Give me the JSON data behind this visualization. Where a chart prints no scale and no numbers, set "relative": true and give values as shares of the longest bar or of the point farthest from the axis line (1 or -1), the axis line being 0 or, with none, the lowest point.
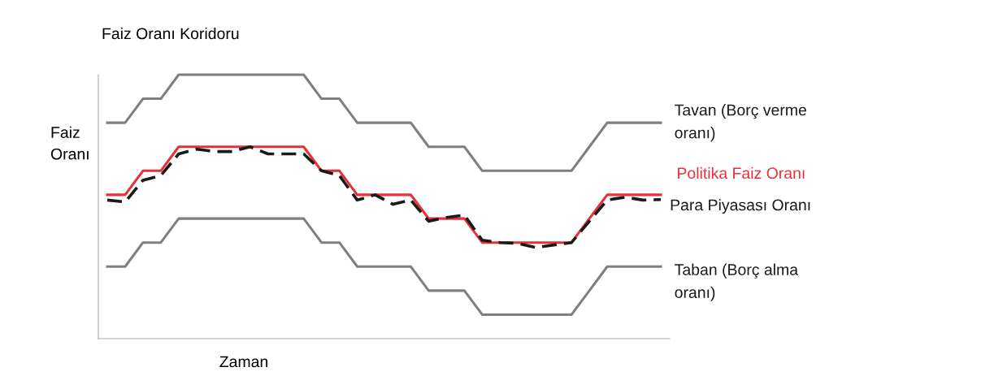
{
  "chart_data": {
    "type": "line",
    "title": "Faiz Oranı Koridoru",
    "ylabel": "Faiz\nOranı",
    "xlabel": "Zaman",
    "relative": true,
    "legend": false,
    "marker": "none",
    "categories": [
      null,
      null,
      null,
      null,
      null,
      null,
      null,
      null,
      null,
      null,
      null,
      null,
      null,
      null,
      null,
      null,
      null,
      null,
      null,
      null,
      null,
      null,
      null,
      null,
      null,
      null,
      null,
      null,
      null,
      null,
      null,
      null
    ],
    "series": [
      {
        "name": "Tavan (Borç verme\noranı)",
        "color": "#7f7f7f",
        "line_style": "solid",
        "values": [
          0.818,
          0.818,
          0.909,
          0.909,
          1,
          1,
          1,
          1,
          1,
          1,
          1,
          1,
          0.909,
          0.909,
          0.818,
          0.818,
          0.818,
          0.818,
          0.727,
          0.727,
          0.727,
          0.636,
          0.636,
          0.636,
          0.636,
          0.636,
          0.636,
          0.727,
          0.818,
          0.818,
          0.818,
          0.818
        ]
      },
      {
        "name": "Politika Faiz Oranı",
        "color": "#e8303a",
        "line_style": "solid",
        "values": [
          0.545,
          0.545,
          0.636,
          0.636,
          0.727,
          0.727,
          0.727,
          0.727,
          0.727,
          0.727,
          0.727,
          0.727,
          0.636,
          0.636,
          0.545,
          0.545,
          0.545,
          0.545,
          0.455,
          0.455,
          0.455,
          0.364,
          0.364,
          0.364,
          0.364,
          0.364,
          0.364,
          0.455,
          0.545,
          0.545,
          0.545,
          0.545
        ]
      },
      {
        "name": "Para Piyasası Oranı",
        "color": "#1a1a1a",
        "line_style": "dashed",
        "values": [
          0.525,
          0.518,
          0.6,
          0.618,
          0.7,
          0.718,
          0.709,
          0.709,
          0.727,
          0.7,
          0.7,
          0.7,
          0.636,
          0.618,
          0.525,
          0.545,
          0.509,
          0.525,
          0.445,
          0.459,
          0.468,
          0.373,
          0.364,
          0.361,
          0.345,
          0.355,
          0.364,
          0.445,
          0.525,
          0.536,
          0.525,
          0.527
        ]
      },
      {
        "name": "Taban (Borç alma\noranı)",
        "color": "#7f7f7f",
        "line_style": "solid",
        "values": [
          0.273,
          0.273,
          0.364,
          0.364,
          0.455,
          0.455,
          0.455,
          0.455,
          0.455,
          0.455,
          0.455,
          0.455,
          0.364,
          0.364,
          0.273,
          0.273,
          0.273,
          0.273,
          0.182,
          0.182,
          0.182,
          0.091,
          0.091,
          0.091,
          0.091,
          0.091,
          0.091,
          0.182,
          0.273,
          0.273,
          0.273,
          0.273
        ]
      }
    ]
  }
}
